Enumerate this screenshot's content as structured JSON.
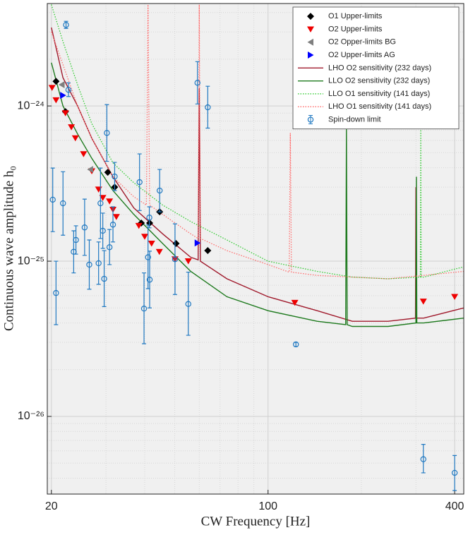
{
  "chart_data": {
    "type": "loglog",
    "xlabel": "CW Frequency [Hz]",
    "ylabel": "Continuous wave amplitude h₀",
    "xlim": [
      19.4,
      428
    ],
    "ylim": [
      3.16e-27,
      4.57e-24
    ],
    "xticks": [
      20,
      100,
      400
    ],
    "xminor": [
      30,
      40,
      50,
      60,
      70,
      80,
      90,
      200,
      300
    ],
    "yticks": [
      {
        "value": 1e-26,
        "label": "10⁻²⁶"
      },
      {
        "value": 1e-25,
        "label": "10⁻²⁵"
      },
      {
        "value": 1e-24,
        "label": "10⁻²⁴"
      }
    ],
    "yminor": [
      4e-27,
      5e-27,
      6e-27,
      7e-27,
      8e-27,
      9e-27,
      2e-26,
      3e-26,
      4e-26,
      5e-26,
      6e-26,
      7e-26,
      8e-26,
      9e-26,
      2e-25,
      3e-25,
      4e-25,
      5e-25,
      6e-25,
      7e-25,
      8e-25,
      9e-25,
      2e-24,
      3e-24,
      4e-24
    ],
    "grid": true,
    "legend": "upper right",
    "series": [
      {
        "name": "O1 Upper-limits",
        "color": "#000000",
        "marker": "diamond",
        "x": [
          20.7,
          22.2,
          30.4,
          32.0,
          39.0,
          41.5,
          44.7,
          50.5,
          63.9
        ],
        "values": [
          1.44e-24,
          9.2e-25,
          3.74e-25,
          3e-25,
          1.76e-25,
          1.76e-25,
          2.08e-25,
          1.3e-25,
          1.17e-25
        ]
      },
      {
        "name": "O2 Upper-limits",
        "color": "#ee0000",
        "marker": "triangle-down",
        "x": [
          20.1,
          20.7,
          22.2,
          23.2,
          23.9,
          25.4,
          27.0,
          28.4,
          29.3,
          30.8,
          31.6,
          32.4,
          38.3,
          40.0,
          42.1,
          44.6,
          50.1,
          55.3,
          122,
          317,
          400
        ],
        "values": [
          1.31e-24,
          1.09e-24,
          9e-25,
          7.3e-25,
          6.2e-25,
          4.9e-25,
          3.8e-25,
          2.9e-25,
          2.56e-25,
          2.43e-25,
          2.15e-25,
          1.93e-25,
          1.69e-25,
          1.44e-25,
          1.3e-25,
          1.15e-25,
          1.03e-25,
          1e-25,
          5.4e-26,
          5.5e-26,
          5.9e-26
        ]
      },
      {
        "name": "O2 Opper-limits BG",
        "color": "#7f7f7f",
        "marker": "triangle-left",
        "x": [
          21.6,
          26.7
        ],
        "values": [
          1.37e-24,
          3.9e-25
        ]
      },
      {
        "name": "O2 Upper-limits AG",
        "color": "#0000ff",
        "marker": "triangle-right",
        "x": [
          21.8,
          59.2
        ],
        "values": [
          1.17e-24,
          1.31e-25
        ]
      },
      {
        "name": "LHO O2 sensitivity (232 days)",
        "color": "#a01a2c",
        "line": "solid",
        "x": [
          20,
          21.8,
          24.3,
          27,
          31.6,
          36.9,
          45.7,
          56.3,
          59.5,
          60,
          60.5,
          73.7,
          100,
          144,
          187,
          244,
          299,
          300,
          301,
          318,
          428
        ],
        "values": [
          3.2e-24,
          1.52e-24,
          1e-24,
          6.2e-25,
          3.5e-25,
          2.2e-25,
          1.5e-25,
          1.06e-25,
          1.02e-25,
          1.3e-24,
          1e-25,
          7.7e-26,
          5.9e-26,
          4.8e-26,
          4.1e-26,
          4.1e-26,
          4.3e-26,
          3e-25,
          4.3e-26,
          4.3e-26,
          5e-26
        ]
      },
      {
        "name": "LLO O2 sensitivity (232 days)",
        "color": "#1e7a1e",
        "line": "solid",
        "x": [
          20,
          21.8,
          24.3,
          27,
          31.6,
          36.9,
          45.7,
          56.3,
          73.7,
          100,
          144,
          178,
          179,
          180,
          187,
          244,
          300,
          301,
          302,
          318,
          428
        ],
        "values": [
          1.9e-24,
          1e-24,
          6.6e-25,
          4.6e-25,
          2.85e-25,
          2e-25,
          1.3e-25,
          8.6e-26,
          5.9e-26,
          4.8e-26,
          4.1e-26,
          3.9e-26,
          7.3e-25,
          3.9e-26,
          3.8e-26,
          3.8e-26,
          4e-26,
          3.5e-25,
          4e-26,
          4e-26,
          4.3e-26
        ]
      },
      {
        "name": "LLO O1 sensitivity (141 days)",
        "color": "#33cc33",
        "line": "dotted",
        "x": [
          20,
          21.8,
          24.3,
          27,
          31.6,
          36.9,
          45.7,
          56.3,
          73.7,
          100,
          144,
          187,
          244,
          310,
          311,
          312,
          318,
          428
        ],
        "values": [
          4.5e-24,
          2.6e-24,
          1.37e-24,
          7.7e-25,
          4.3e-25,
          3.2e-25,
          2.3e-25,
          1.8e-25,
          1.37e-25,
          1e-25,
          8.6e-26,
          7.9e-26,
          7.7e-26,
          7.9e-26,
          7.3e-25,
          7.9e-26,
          7.9e-26,
          9.2e-26
        ]
      },
      {
        "name": "LHO O1 sensitivity (141 days)",
        "color": "#ff6f6f",
        "line": "dotted",
        "x": [
          20,
          24.3,
          27,
          31.6,
          36.9,
          40.5,
          41,
          41.5,
          45.7,
          56.3,
          59.5,
          60,
          60.5,
          73.7,
          100,
          117,
          118,
          119,
          144,
          187,
          244,
          318,
          428
        ],
        "values": [
          3e-24,
          1e-24,
          6.2e-25,
          3.5e-25,
          2.6e-25,
          2.3e-25,
          4.5e-24,
          2.3e-25,
          2e-25,
          1.5e-25,
          1.4e-25,
          4.5e-24,
          1.4e-25,
          1.17e-25,
          9.5e-26,
          8.5e-26,
          6.7e-25,
          8.5e-26,
          8.1e-26,
          7.9e-26,
          7.7e-26,
          8.1e-26,
          8.6e-26
        ]
      },
      {
        "name": "Spin-down limit",
        "color": "#1f78c1",
        "marker": "circle-errorbar",
        "x": [
          22.3,
          20.2,
          20.7,
          21.8,
          22.7,
          23.6,
          24.0,
          25.6,
          26.5,
          28.4,
          28.8,
          29.3,
          29.6,
          30.2,
          30.8,
          31.6,
          32.0,
          38.5,
          39.8,
          41.0,
          41.4,
          41.5,
          44.7,
          50.1,
          55.3,
          59.2,
          63.9,
          123,
          317,
          400
        ],
        "values": [
          3.33e-24,
          2.49e-25,
          6.24e-26,
          2.36e-25,
          1.27e-24,
          1.15e-25,
          1.37e-25,
          1.65e-25,
          9.5e-26,
          9.7e-26,
          2.36e-25,
          1.57e-25,
          7.7e-26,
          6.7e-25,
          1.23e-25,
          1.72e-25,
          3.51e-25,
          3.23e-25,
          4.95e-26,
          1.06e-25,
          1.91e-25,
          7.6e-26,
          2.85e-25,
          1.03e-25,
          5.3e-26,
          1.41e-24,
          9.8e-25,
          2.91e-26,
          5.3e-27,
          4.33e-27
        ],
        "lower": [
          3.16e-24,
          1.55e-25,
          3.9e-26,
          1.47e-25,
          1.15e-24,
          8.4e-26,
          1.11e-25,
          1.09e-25,
          6.6e-26,
          7.1e-26,
          1.4e-25,
          1.21e-25,
          5.1e-26,
          4.4e-25,
          9.5e-26,
          1.33e-25,
          2.85e-25,
          2.12e-25,
          2.94e-26,
          6.65e-26,
          1.64e-25,
          5e-26,
          2.08e-25,
          6.1e-26,
          3.33e-26,
          1.03e-24,
          7.2e-25,
          2.82e-26,
          4.33e-27,
          3.33e-27
        ],
        "upper": [
          3.51e-24,
          3.98e-25,
          1e-25,
          3.77e-25,
          1.41e-24,
          1.57e-25,
          1.69e-25,
          2.51e-25,
          1.37e-25,
          1.33e-25,
          3.98e-25,
          2.04e-25,
          1.17e-25,
          1.02e-24,
          1.6e-25,
          2.24e-25,
          4.33e-25,
          4.91e-25,
          8.4e-26,
          1.71e-25,
          2.24e-25,
          1.16e-25,
          3.9e-25,
          1.74e-25,
          8.5e-26,
          1.93e-24,
          1.34e-24,
          3e-26,
          6.6e-27,
          5.6e-27
        ]
      }
    ]
  }
}
